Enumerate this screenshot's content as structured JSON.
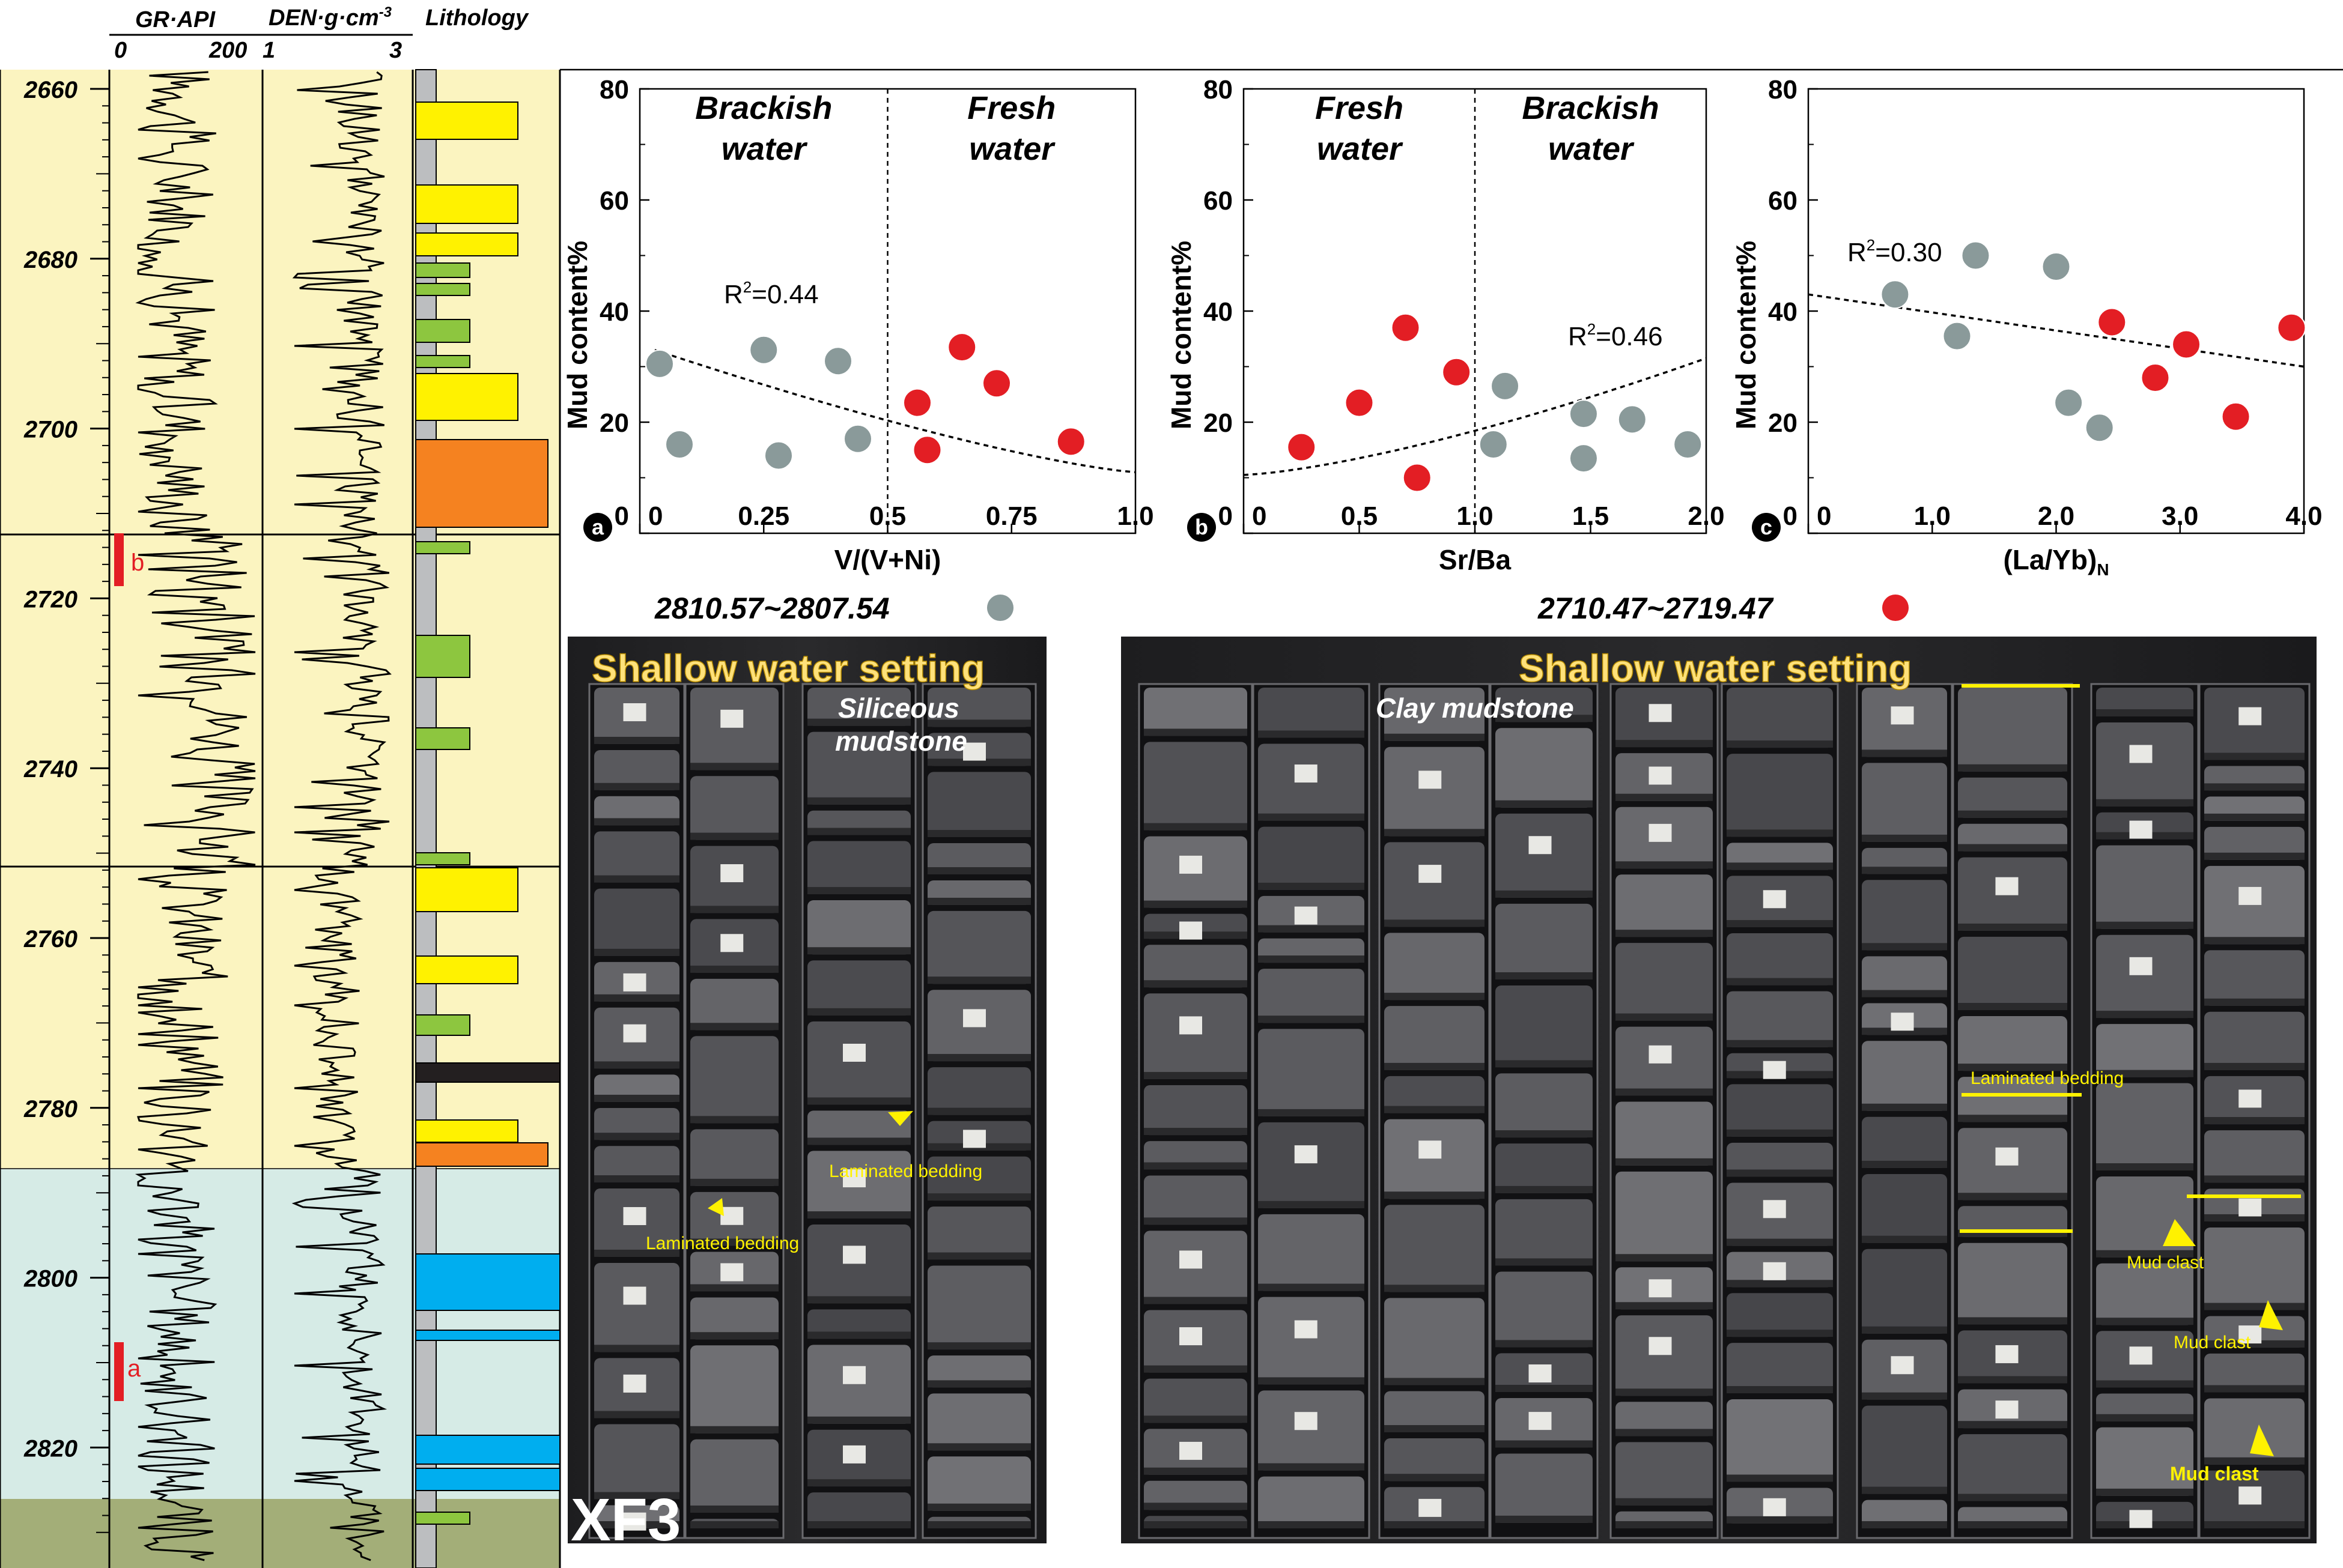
{
  "well_log": {
    "headers": {
      "gr": "GR·API",
      "den": "DEN·g·cm",
      "den_exp": "-3",
      "lith": "Lithology",
      "gr_min": "0",
      "gr_max": "200",
      "den_min": "1",
      "den_max": "3"
    },
    "depth_ticks": [
      "2660",
      "2680",
      "2700",
      "2720",
      "2740",
      "2760",
      "2780",
      "2800",
      "2820"
    ],
    "sample_markers": [
      {
        "label": "b",
        "from": 2712,
        "to": 2719
      },
      {
        "label": "a",
        "from": 2808,
        "to": 2815
      }
    ],
    "zone_colors": {
      "light_yellow": "#fbf4c0",
      "light_cyan": "#d6ebe6",
      "olive": "#a3ae78"
    },
    "lithology_colors": {
      "yellow": "#fff200",
      "green": "#8dc63f",
      "orange": "#f58220",
      "black": "#231f20",
      "blue": "#00aeef"
    }
  },
  "chart_data": [
    {
      "type": "scatter",
      "panel_label": "a",
      "xlabel": "V/(V+Ni)",
      "ylabel": "Mud content%",
      "xlim": [
        0,
        1.0
      ],
      "ylim": [
        0,
        80
      ],
      "xticks": [
        "0",
        "0.25",
        "0.5",
        "0.75",
        "1.0"
      ],
      "yticks": [
        "0",
        "20",
        "40",
        "60",
        "80"
      ],
      "divider_x": 0.5,
      "region_labels": [
        {
          "line1": "Brackish",
          "line2": "water"
        },
        {
          "line1": "Fresh",
          "line2": "water"
        }
      ],
      "r2_label": "R",
      "r2_value": "=0.44",
      "series": [
        {
          "color": "#8a9a9a",
          "x": [
            0.04,
            0.08,
            0.25,
            0.28,
            0.4,
            0.44
          ],
          "y": [
            30.5,
            16,
            33,
            14,
            31,
            17
          ]
        },
        {
          "color": "#e31e24",
          "x": [
            0.56,
            0.58,
            0.65,
            0.72,
            0.87
          ],
          "y": [
            23.5,
            15,
            33.5,
            27,
            16.5
          ]
        }
      ],
      "trend": {
        "x": [
          0.03,
          1.0
        ],
        "y": [
          33,
          11
        ]
      }
    },
    {
      "type": "scatter",
      "panel_label": "b",
      "xlabel": "Sr/Ba",
      "ylabel": "Mud content%",
      "xlim": [
        0,
        2.0
      ],
      "ylim": [
        0,
        80
      ],
      "xticks": [
        "0",
        "0.5",
        "1.0",
        "1.5",
        "2.0"
      ],
      "yticks": [
        "0",
        "20",
        "40",
        "60",
        "80"
      ],
      "divider_x": 1.0,
      "region_labels": [
        {
          "line1": "Fresh",
          "line2": "water"
        },
        {
          "line1": "Brackish",
          "line2": "water"
        }
      ],
      "r2_label": "R",
      "r2_value": "=0.46",
      "series": [
        {
          "color": "#8a9a9a",
          "x": [
            1.08,
            1.13,
            1.47,
            1.47,
            1.68,
            1.92
          ],
          "y": [
            16,
            26.5,
            21.5,
            13.5,
            20.5,
            16
          ]
        },
        {
          "color": "#e31e24",
          "x": [
            0.25,
            0.5,
            0.7,
            0.75,
            0.92
          ],
          "y": [
            15.5,
            23.5,
            37,
            10,
            29
          ]
        }
      ],
      "trend": {
        "x": [
          0,
          2.0
        ],
        "y": [
          10.5,
          31.5
        ]
      }
    },
    {
      "type": "scatter",
      "panel_label": "c",
      "xlabel": "(La/Yb)",
      "xlabel_sub": "N",
      "ylabel": "Mud content%",
      "xlim": [
        0,
        4.0
      ],
      "ylim": [
        0,
        80
      ],
      "xticks": [
        "0",
        "1.0",
        "2.0",
        "3.0",
        "4.0"
      ],
      "yticks": [
        "0",
        "20",
        "40",
        "60",
        "80"
      ],
      "r2_label": "R",
      "r2_value": "=0.30",
      "series": [
        {
          "color": "#8a9a9a",
          "x": [
            0.7,
            1.2,
            1.35,
            2.0,
            2.1,
            2.35
          ],
          "y": [
            43,
            35.5,
            50,
            48,
            23.5,
            19
          ]
        },
        {
          "color": "#e31e24",
          "x": [
            2.45,
            2.8,
            3.05,
            3.45,
            3.9
          ],
          "y": [
            38,
            28,
            34,
            21,
            37
          ]
        }
      ],
      "trend": {
        "x": [
          0,
          4.0
        ],
        "y": [
          43,
          30
        ]
      }
    }
  ],
  "photos": {
    "left": {
      "range": "2810.57~2807.54",
      "dot_color": "#8a9a9a",
      "setting": "Shallow water setting",
      "caption_line1": "Siliceous",
      "caption_line2": "mudstone",
      "annotations": [
        "Laminated bedding",
        "Laminated bedding"
      ],
      "well": "XF3"
    },
    "right": {
      "range": "2710.47~2719.47",
      "dot_color": "#e31e24",
      "setting": "Shallow water setting",
      "caption": "Clay mudstone",
      "annotations": [
        "Laminated bedding",
        "Mud clast",
        "Mud clast",
        "Mud clast"
      ]
    }
  }
}
